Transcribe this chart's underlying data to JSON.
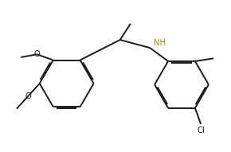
{
  "background_color": "#ffffff",
  "line_color": "#1a1a1a",
  "nh_color": "#b8860b",
  "o_color": "#1a1a1a",
  "bond_width": 1.4,
  "dbo": 0.022,
  "figsize": [
    2.9,
    1.91
  ],
  "dpi": 100,
  "xlim": [
    -2.0,
    2.0
  ],
  "ylim": [
    -1.35,
    1.25
  ]
}
